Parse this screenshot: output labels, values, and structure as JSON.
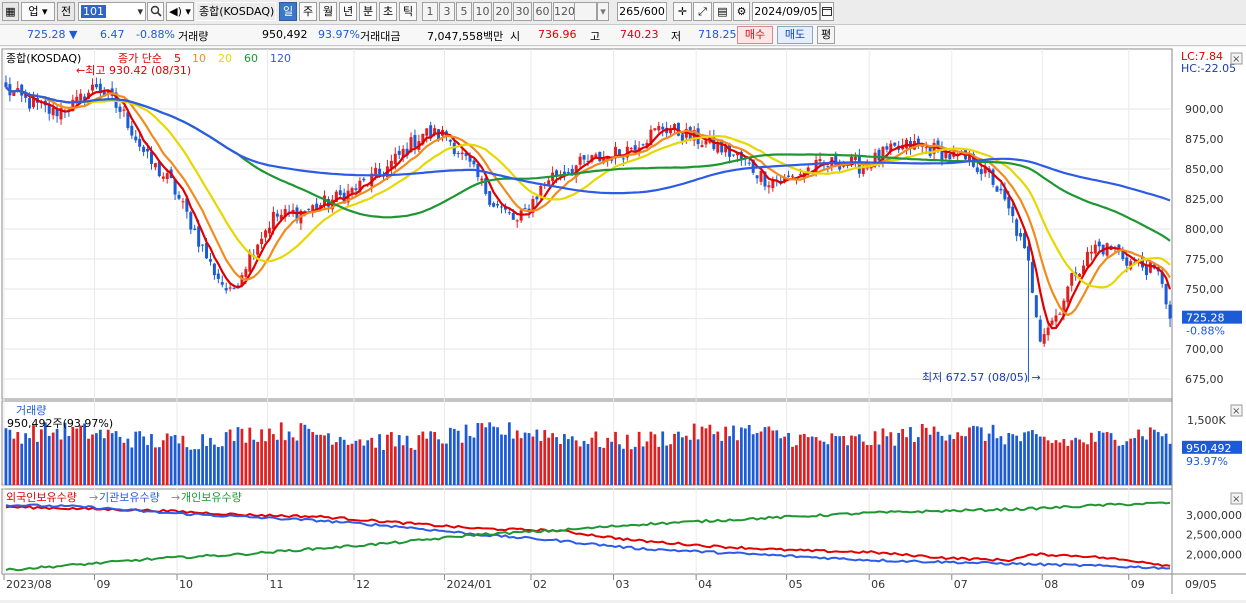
{
  "toolbar": {
    "market": "업",
    "prev": "전",
    "code": "101",
    "name": "종합(KOSDAQ)",
    "periods": [
      "일",
      "주",
      "월",
      "년",
      "분",
      "초",
      "틱"
    ],
    "active_period": "일",
    "intervals": [
      "1",
      "3",
      "5",
      "10",
      "20",
      "30",
      "60",
      "120"
    ],
    "count": "265/600",
    "date": "2024/09/05"
  },
  "info": {
    "price": "725.28",
    "change": "6.47",
    "change_pct": "-0.88%",
    "volume_label": "거래량",
    "volume": "950,492",
    "volume_pct": "93.97%",
    "amount_label": "거래대금",
    "amount": "7,047,558백만",
    "open_label": "시",
    "open": "736.96",
    "high_label": "고",
    "high": "740.23",
    "low_label": "저",
    "low": "718.25",
    "buy": "매수",
    "sell": "매도",
    "eval": "평"
  },
  "price_panel": {
    "title": "종합(KOSDAQ)",
    "ma_label": "종가 단순",
    "ma_periods": [
      "5",
      "10",
      "20",
      "60",
      "120"
    ],
    "ma_colors": [
      "#e00000",
      "#f08c1e",
      "#e6d800",
      "#1e9632",
      "#2d5be6"
    ],
    "max_annotation": "최고 930.42 (08/31)",
    "min_annotation": "최저 672.57 (08/05)",
    "lc": "LC:7.84",
    "hc": "HC:-22.05",
    "y_ticks": [
      "900,00",
      "875,00",
      "850,00",
      "825,00",
      "800,00",
      "775,00",
      "750,00",
      "725,28",
      "700,00",
      "675,00"
    ],
    "last_price": "725.28",
    "last_pct": "-0.88%"
  },
  "volume_panel": {
    "title": "거래량",
    "value": "950,492주(93.97%)",
    "y_ticks": [
      "1,500K"
    ],
    "last_value": "950,492",
    "last_pct": "93.97%"
  },
  "holding_panel": {
    "legend": [
      "외국인보유수량",
      "기관보유수량",
      "개인보유수량"
    ],
    "y_ticks": [
      "3,000,000",
      "2,500,000",
      "2,000,000"
    ]
  },
  "x_axis": [
    "2023/08",
    "09",
    "10",
    "11",
    "12",
    "2024/01",
    "02",
    "03",
    "04",
    "05",
    "06",
    "07",
    "08",
    "09",
    "09/05"
  ],
  "colors": {
    "up": "#e02020",
    "down": "#1c5bd6",
    "foreign": "#e00000",
    "institution": "#2d5be6",
    "individual": "#1e9632",
    "accent": "#3c78c8"
  },
  "chart_data": {
    "type": "candlestick",
    "title": "종합(KOSDAQ)",
    "x_start": "2023/08",
    "x_end": "2024/09/05",
    "ylim": [
      660,
      935
    ],
    "close_path": [
      [
        0,
        916
      ],
      [
        6,
        905
      ],
      [
        12,
        897
      ],
      [
        18,
        905
      ],
      [
        23,
        920
      ],
      [
        30,
        895
      ],
      [
        36,
        858
      ],
      [
        42,
        838
      ],
      [
        47,
        805
      ],
      [
        52,
        770
      ],
      [
        57,
        745
      ],
      [
        63,
        785
      ],
      [
        68,
        810
      ],
      [
        76,
        815
      ],
      [
        86,
        828
      ],
      [
        96,
        848
      ],
      [
        106,
        880
      ],
      [
        112,
        878
      ],
      [
        118,
        852
      ],
      [
        124,
        822
      ],
      [
        130,
        805
      ],
      [
        138,
        843
      ],
      [
        147,
        855
      ],
      [
        157,
        865
      ],
      [
        167,
        885
      ],
      [
        173,
        878
      ],
      [
        180,
        870
      ],
      [
        187,
        858
      ],
      [
        193,
        842
      ],
      [
        198,
        840
      ],
      [
        204,
        850
      ],
      [
        212,
        856
      ],
      [
        218,
        852
      ],
      [
        223,
        862
      ],
      [
        230,
        870
      ],
      [
        236,
        866
      ],
      [
        241,
        860
      ],
      [
        246,
        856
      ],
      [
        251,
        840
      ],
      [
        256,
        808
      ],
      [
        260,
        770
      ],
      [
        263,
        712
      ],
      [
        267,
        728
      ],
      [
        272,
        765
      ],
      [
        277,
        785
      ],
      [
        282,
        783
      ],
      [
        286,
        772
      ],
      [
        290,
        768
      ],
      [
        294,
        758
      ],
      [
        296,
        725
      ]
    ],
    "last": {
      "date": "2024/09/05",
      "open": 736.96,
      "high": 740.23,
      "low": 718.25,
      "close": 725.28,
      "change": -6.47,
      "change_pct": -0.88,
      "volume": 950492,
      "volume_pct": 93.97
    },
    "max": {
      "value": 930.42,
      "date": "08/31"
    },
    "min": {
      "value": 672.57,
      "date": "08/05"
    },
    "volume_ylim": [
      0,
      1800000
    ],
    "holding_ylim": [
      1500000,
      3500000
    ],
    "holdings": {
      "foreign": [
        [
          0,
          3200000
        ],
        [
          20,
          3150000
        ],
        [
          40,
          3100000
        ],
        [
          60,
          3000000
        ],
        [
          80,
          2950000
        ],
        [
          100,
          2800000
        ],
        [
          120,
          2650000
        ],
        [
          140,
          2600000
        ],
        [
          160,
          2350000
        ],
        [
          180,
          2200000
        ],
        [
          200,
          2100000
        ],
        [
          220,
          2050000
        ],
        [
          240,
          1900000
        ],
        [
          255,
          1850000
        ],
        [
          262,
          2000000
        ],
        [
          275,
          1950000
        ],
        [
          290,
          1800000
        ],
        [
          296,
          1700000
        ]
      ],
      "institution": [
        [
          0,
          3250000
        ],
        [
          20,
          3200000
        ],
        [
          40,
          3050000
        ],
        [
          60,
          2950000
        ],
        [
          80,
          2850000
        ],
        [
          100,
          2700000
        ],
        [
          120,
          2500000
        ],
        [
          140,
          2350000
        ],
        [
          160,
          2150000
        ],
        [
          180,
          2050000
        ],
        [
          200,
          1950000
        ],
        [
          220,
          1850000
        ],
        [
          240,
          1800000
        ],
        [
          260,
          1750000
        ],
        [
          280,
          1700000
        ],
        [
          296,
          1650000
        ]
      ],
      "individual": [
        [
          0,
          1600000
        ],
        [
          20,
          1750000
        ],
        [
          40,
          1900000
        ],
        [
          60,
          2000000
        ],
        [
          80,
          2150000
        ],
        [
          100,
          2300000
        ],
        [
          120,
          2500000
        ],
        [
          140,
          2600000
        ],
        [
          160,
          2750000
        ],
        [
          180,
          2850000
        ],
        [
          200,
          2950000
        ],
        [
          220,
          3050000
        ],
        [
          240,
          3100000
        ],
        [
          260,
          3150000
        ],
        [
          280,
          3250000
        ],
        [
          296,
          3300000
        ]
      ]
    }
  }
}
